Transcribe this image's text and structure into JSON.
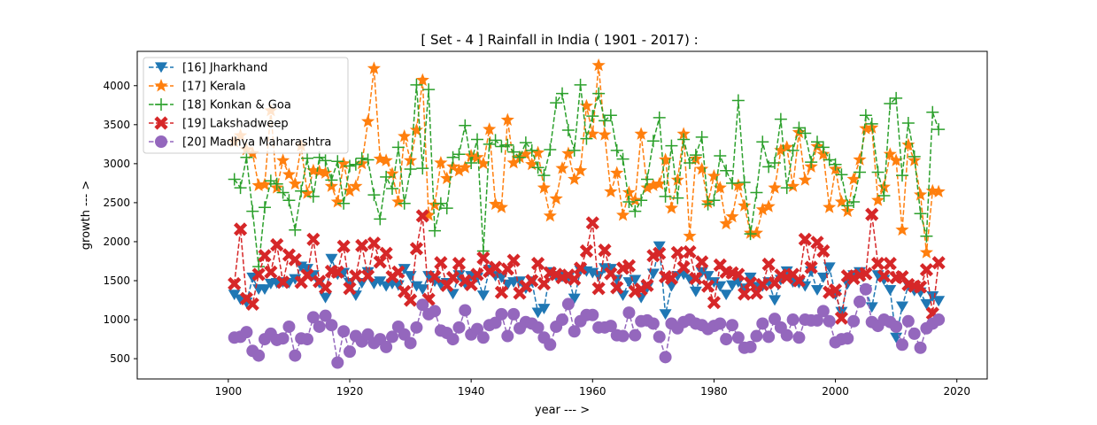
{
  "chart_data": {
    "type": "line",
    "title": "[ Set - 4 ] Rainfall in India ( 1901 - 2017) :",
    "xlabel": "year --- >",
    "ylabel": "growth --- >",
    "xlim": [
      1885,
      2025
    ],
    "ylim": [
      240,
      4440
    ],
    "xticks": [
      1900,
      1920,
      1940,
      1960,
      1980,
      2000,
      2020
    ],
    "yticks": [
      500,
      1000,
      1500,
      2000,
      2500,
      3000,
      3500,
      4000
    ],
    "x_start": 1901,
    "legend_position": "upper-left",
    "series": [
      {
        "name": "[16] Jharkhand",
        "color": "#1f77b4",
        "marker": "triangle-down",
        "values": [
          1320,
          1260,
          1220,
          1540,
          1390,
          1390,
          1460,
          1470,
          1480,
          1470,
          1520,
          1680,
          1650,
          1570,
          1470,
          1280,
          1780,
          1580,
          1600,
          1470,
          1310,
          1470,
          1610,
          1460,
          1490,
          1430,
          1460,
          1440,
          1650,
          1560,
          1430,
          1390,
          1560,
          1490,
          1450,
          1470,
          1330,
          1570,
          1460,
          1560,
          1540,
          1310,
          1640,
          1560,
          1540,
          1450,
          1480,
          1490,
          1400,
          1490,
          1090,
          1140,
          1610,
          1560,
          1550,
          1540,
          1270,
          1630,
          1620,
          1600,
          1560,
          1660,
          1650,
          1510,
          1310,
          1480,
          1510,
          1280,
          1410,
          1590,
          1940,
          1070,
          1430,
          1560,
          1580,
          1520,
          1360,
          1610,
          1560,
          1480,
          1430,
          1320,
          1440,
          1480,
          1400,
          1540,
          1420,
          1430,
          1480,
          1250,
          1510,
          1620,
          1480,
          1470,
          1430,
          1620,
          1380,
          1540,
          1670,
          1320,
          1100,
          1460,
          1570,
          1610,
          1380,
          1160,
          1570,
          1510,
          1380,
          770,
          1170,
          1440,
          1370,
          1350,
          1200,
          1300,
          1240
        ]
      },
      {
        "name": "[17] Kerala",
        "color": "#ff7f0e",
        "marker": "star",
        "values": [
          3280,
          3360,
          3180,
          3130,
          2720,
          2730,
          3680,
          2690,
          3040,
          2860,
          2740,
          3230,
          2620,
          2910,
          2900,
          2880,
          2710,
          2510,
          3000,
          2650,
          2710,
          3000,
          3540,
          4220,
          3060,
          3040,
          2870,
          2510,
          3350,
          3040,
          3430,
          4070,
          2340,
          2470,
          3010,
          2810,
          2960,
          2910,
          2950,
          3100,
          3080,
          3000,
          3440,
          2480,
          2440,
          3560,
          3010,
          3080,
          3120,
          2990,
          3140,
          2690,
          2330,
          2550,
          2940,
          3130,
          2800,
          2910,
          3740,
          3380,
          4260,
          3370,
          2640,
          2880,
          2340,
          2630,
          2530,
          3380,
          2690,
          2720,
          2740,
          3050,
          2430,
          2790,
          3380,
          2070,
          3060,
          2930,
          2500,
          2840,
          2690,
          2230,
          2320,
          2720,
          2460,
          2110,
          2110,
          2410,
          2450,
          2690,
          3170,
          3210,
          2710,
          3400,
          2790,
          2960,
          3220,
          3120,
          2440,
          2930,
          2510,
          2390,
          2800,
          3050,
          3450,
          3460,
          2530,
          2700,
          3120,
          3040,
          2150,
          3240,
          3040,
          2600,
          1860,
          2650,
          2640
        ]
      },
      {
        "name": "[18] Konkan & Goa",
        "color": "#2ca02c",
        "marker": "plus",
        "values": [
          2800,
          2690,
          3080,
          2390,
          1680,
          2440,
          2780,
          2740,
          2630,
          2530,
          2150,
          2650,
          3070,
          2580,
          3080,
          3040,
          2790,
          3030,
          2490,
          2970,
          2990,
          3070,
          3050,
          2600,
          2290,
          2830,
          2680,
          3210,
          2490,
          2930,
          4010,
          2940,
          3950,
          2140,
          2490,
          2430,
          3080,
          3120,
          3490,
          3010,
          3310,
          1880,
          3250,
          3300,
          3220,
          3240,
          3150,
          3080,
          3270,
          3170,
          2950,
          2850,
          3180,
          3780,
          3900,
          3430,
          3170,
          4010,
          3320,
          3610,
          3900,
          3550,
          3620,
          3170,
          3060,
          2510,
          2390,
          2530,
          2800,
          3290,
          3590,
          2580,
          3230,
          2560,
          3310,
          3010,
          3110,
          3340,
          2480,
          2530,
          3100,
          2910,
          2750,
          3810,
          2760,
          2100,
          2630,
          3280,
          2960,
          3010,
          3570,
          2690,
          3170,
          3460,
          3390,
          3020,
          3280,
          3210,
          3050,
          2990,
          2860,
          2460,
          2510,
          2890,
          3620,
          3510,
          2890,
          2590,
          3770,
          3840,
          2850,
          3520,
          3090,
          2360,
          2070,
          3660,
          3440
        ]
      },
      {
        "name": "[19] Lakshadweep",
        "color": "#d62728",
        "marker": "x-filled",
        "values": [
          1460,
          2160,
          1270,
          1200,
          1580,
          1820,
          1610,
          1960,
          1480,
          1830,
          1770,
          1480,
          1570,
          2030,
          1490,
          1410,
          1620,
          1610,
          1940,
          1400,
          1560,
          1950,
          1560,
          1980,
          1740,
          1850,
          1550,
          1610,
          1360,
          1250,
          1910,
          2330,
          1260,
          1550,
          1730,
          1440,
          1540,
          1720,
          1500,
          1450,
          1580,
          1790,
          1620,
          1670,
          1350,
          1650,
          1760,
          1340,
          1430,
          1500,
          1720,
          1460,
          1600,
          1580,
          1540,
          1570,
          1520,
          1660,
          1880,
          2240,
          1400,
          1890,
          1590,
          1410,
          1660,
          1690,
          1360,
          1390,
          1440,
          1820,
          1850,
          1550,
          1530,
          1860,
          1670,
          1870,
          1530,
          1740,
          1430,
          1220,
          1700,
          1610,
          1600,
          1580,
          1330,
          1470,
          1340,
          1450,
          1710,
          1470,
          1570,
          1540,
          1580,
          1500,
          2030,
          1670,
          1990,
          1880,
          1350,
          1380,
          1020,
          1560,
          1530,
          1570,
          1590,
          2350,
          1720,
          1560,
          1720,
          1540,
          1550,
          1450,
          1430,
          1420,
          1640,
          1080,
          1730
        ]
      },
      {
        "name": "[20] Madhya Maharashtra",
        "color": "#9467bd",
        "marker": "circle",
        "values": [
          770,
          780,
          840,
          600,
          540,
          750,
          820,
          740,
          760,
          910,
          540,
          760,
          750,
          1030,
          910,
          1050,
          930,
          450,
          850,
          590,
          790,
          720,
          810,
          700,
          750,
          650,
          780,
          910,
          810,
          700,
          900,
          1190,
          1070,
          1110,
          860,
          830,
          750,
          900,
          1120,
          810,
          880,
          770,
          930,
          960,
          1070,
          790,
          1070,
          890,
          970,
          950,
          900,
          770,
          680,
          910,
          1000,
          1200,
          850,
          980,
          1060,
          1060,
          900,
          900,
          920,
          800,
          790,
          1090,
          800,
          980,
          990,
          950,
          780,
          520,
          950,
          890,
          970,
          1000,
          950,
          930,
          880,
          920,
          950,
          750,
          930,
          770,
          640,
          650,
          790,
          950,
          780,
          1010,
          900,
          800,
          1000,
          770,
          1000,
          990,
          990,
          1110,
          980,
          710,
          750,
          760,
          980,
          1230,
          1390,
          970,
          920,
          1000,
          970,
          910,
          680,
          980,
          820,
          640,
          890,
          950,
          1000
        ]
      }
    ]
  }
}
